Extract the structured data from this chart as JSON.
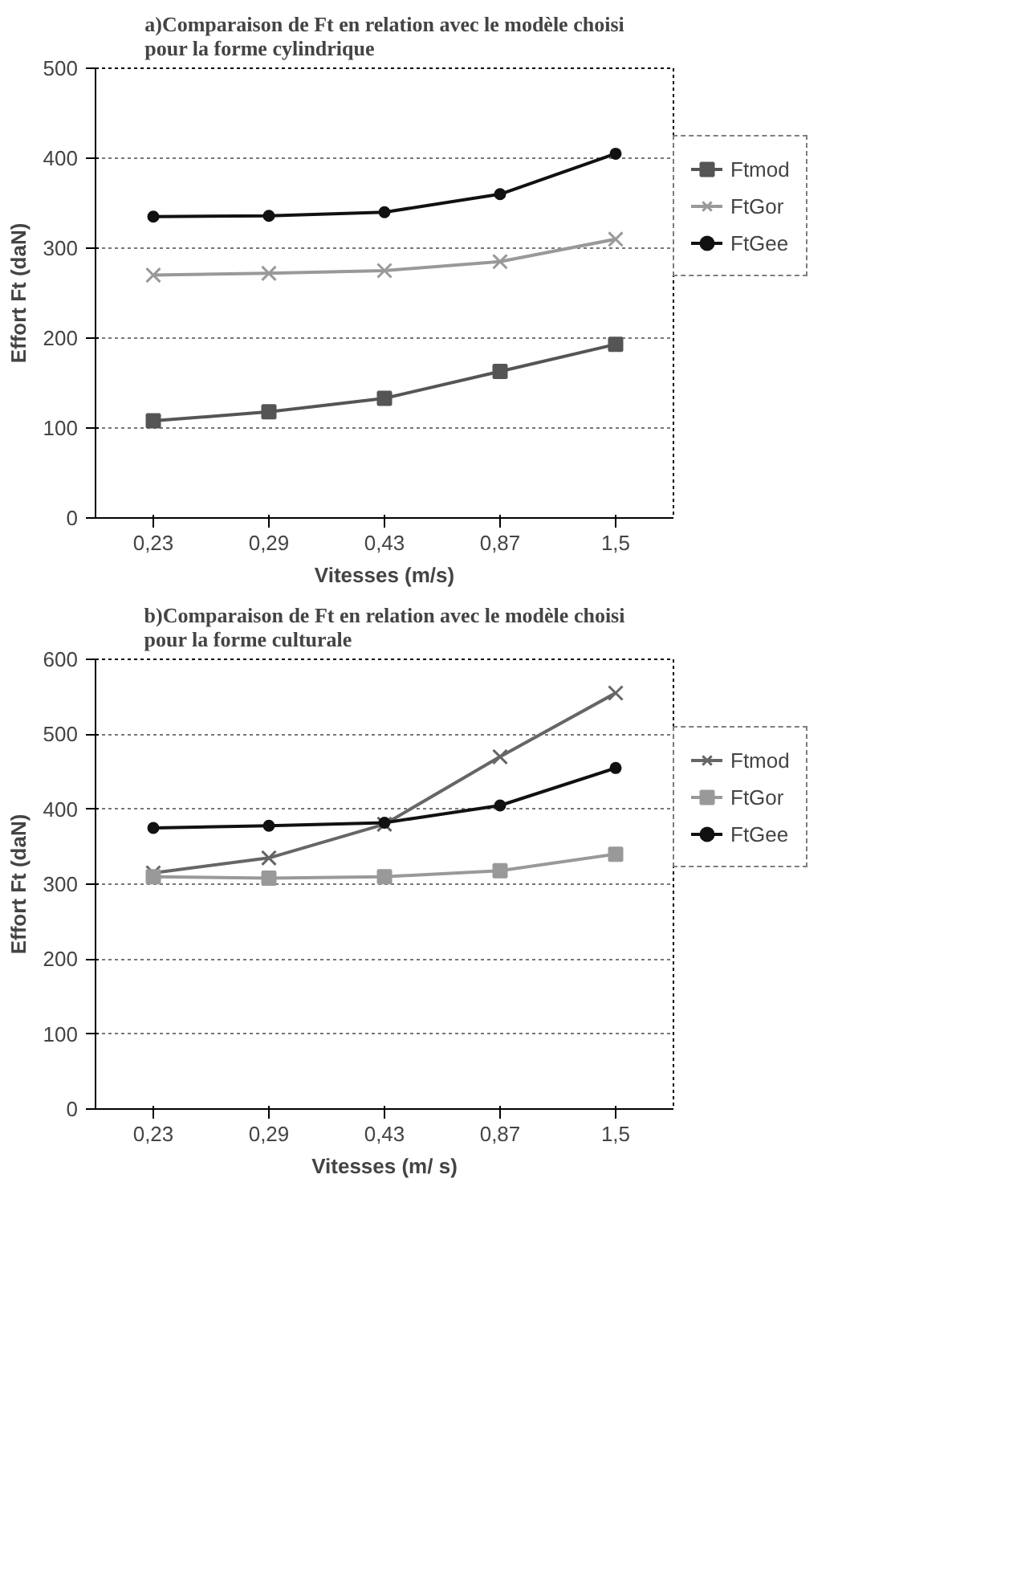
{
  "chart_data": [
    {
      "type": "line",
      "title": "a)Comparaison de Ft en relation avec le modèle choisi\npour la forme cylindrique",
      "xlabel": "Vitesses (m/s)",
      "ylabel": "Effort Ft (daN)",
      "categories": [
        "0,23",
        "0,29",
        "0,43",
        "0,87",
        "1,5"
      ],
      "ylim": [
        0,
        500
      ],
      "yticks": [
        0,
        100,
        200,
        300,
        400,
        500
      ],
      "grid": "y",
      "legend": "right",
      "series": [
        {
          "name": "Ftmod",
          "color": "#555555",
          "marker": "square",
          "values": [
            108,
            118,
            133,
            163,
            193
          ]
        },
        {
          "name": "FtGor",
          "color": "#999999",
          "marker": "cross",
          "values": [
            270,
            272,
            275,
            285,
            310
          ]
        },
        {
          "name": "FtGee",
          "color": "#111111",
          "marker": "circle",
          "values": [
            335,
            336,
            340,
            360,
            405
          ]
        }
      ]
    },
    {
      "type": "line",
      "title": "b)Comparaison de Ft en relation avec le modèle choisi\npour la forme culturale",
      "xlabel": "Vitesses (m/ s)",
      "ylabel": "Effort Ft (daN)",
      "categories": [
        "0,23",
        "0,29",
        "0,43",
        "0,87",
        "1,5"
      ],
      "ylim": [
        0,
        600
      ],
      "yticks": [
        0,
        100,
        200,
        300,
        400,
        500,
        600
      ],
      "grid": "y",
      "legend": "right",
      "series": [
        {
          "name": "Ftmod",
          "color": "#666666",
          "marker": "cross",
          "values": [
            315,
            335,
            380,
            470,
            555
          ]
        },
        {
          "name": "FtGor",
          "color": "#999999",
          "marker": "square",
          "values": [
            310,
            308,
            310,
            318,
            340
          ]
        },
        {
          "name": "FtGee",
          "color": "#111111",
          "marker": "circle",
          "values": [
            375,
            378,
            382,
            405,
            455
          ]
        }
      ]
    }
  ]
}
